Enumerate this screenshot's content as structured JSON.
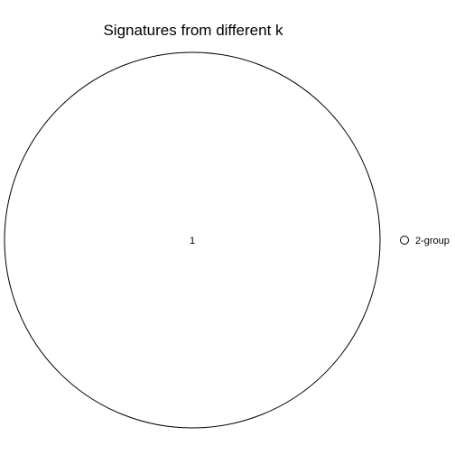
{
  "chart_data": {
    "type": "venn",
    "title": "Signatures from different k",
    "sets": [
      {
        "name": "2-group",
        "size": 1,
        "fill": "#ffffff",
        "stroke": "#000000"
      }
    ],
    "regions": [
      {
        "sets": [
          "2-group"
        ],
        "value": "1"
      }
    ],
    "legend": {
      "placement": "right"
    }
  }
}
